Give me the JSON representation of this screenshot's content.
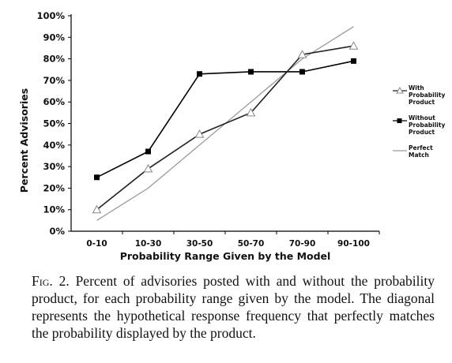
{
  "chart_data": {
    "type": "line",
    "x_label": "Probability Range Given by the Model",
    "y_label": "Percent Advisories",
    "categories": [
      "0-10",
      "10-30",
      "30-50",
      "50-70",
      "70-90",
      "90-100"
    ],
    "series": [
      {
        "name": "With Probability Product",
        "color": "#222222",
        "marker": "triangle",
        "values": [
          10,
          29,
          45,
          55,
          82,
          86
        ]
      },
      {
        "name": "Without Probability Product",
        "color": "#000000",
        "marker": "square",
        "values": [
          25,
          37,
          73,
          74,
          74,
          79
        ]
      },
      {
        "name": "Perfect Match",
        "color": "#9a9a9a",
        "marker": "none",
        "values": [
          5,
          20,
          40,
          60,
          80,
          95
        ]
      }
    ],
    "ylim": [
      0,
      100
    ],
    "yticks": [
      {
        "value": 0,
        "label": "0%"
      },
      {
        "value": 10,
        "label": "10%"
      },
      {
        "value": 20,
        "label": "20%"
      },
      {
        "value": 30,
        "label": "30%"
      },
      {
        "value": 40,
        "label": "40%"
      },
      {
        "value": 50,
        "label": "50%"
      },
      {
        "value": 60,
        "label": "60%"
      },
      {
        "value": 70,
        "label": "70%"
      },
      {
        "value": 80,
        "label": "80%"
      },
      {
        "value": 90,
        "label": "90%"
      },
      {
        "value": 100,
        "label": "100%"
      }
    ],
    "grid": false,
    "legend": "right"
  },
  "caption": {
    "label": "Fig. 2.",
    "text": "Percent of advisories posted with and without the probability product, for each probability range given by the model. The diagonal represents the hypothetical response frequency that perfectly matches the probability displayed by the product."
  }
}
